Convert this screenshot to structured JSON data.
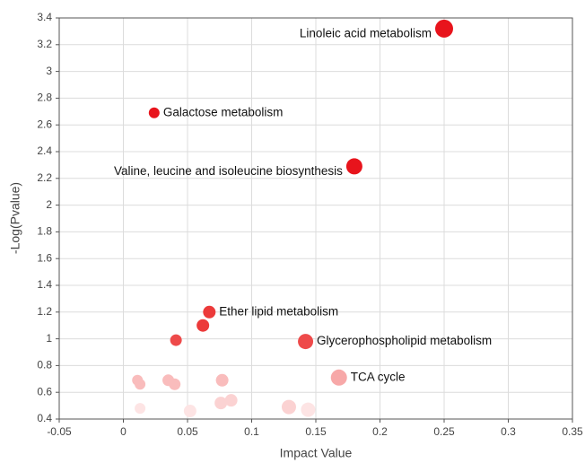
{
  "chart_data": {
    "type": "scatter",
    "x_label": "Impact Value",
    "y_label": "-Log(Pvalue)",
    "xlim": [
      -0.05,
      0.35
    ],
    "ylim": [
      0.4,
      3.4
    ],
    "xticks": [
      -0.05,
      0,
      0.05,
      0.1,
      0.15,
      0.2,
      0.25,
      0.3,
      0.35
    ],
    "yticks": [
      0.4,
      0.6,
      0.8,
      1,
      1.2,
      1.4,
      1.6,
      1.8,
      2,
      2.2,
      2.4,
      2.6,
      2.8,
      3,
      3.2,
      3.4
    ],
    "grid": true,
    "x": [
      0.25,
      0.024,
      0.18,
      0.067,
      0.062,
      0.041,
      0.142,
      0.168,
      0.011,
      0.013,
      0.035,
      0.04,
      0.077,
      0.076,
      0.084,
      0.129,
      0.144,
      0.013,
      0.052
    ],
    "values": [
      3.32,
      2.69,
      2.29,
      1.2,
      1.1,
      0.99,
      0.98,
      0.71,
      0.69,
      0.66,
      0.69,
      0.66,
      0.69,
      0.52,
      0.54,
      0.49,
      0.47,
      0.48,
      0.46
    ],
    "sizes": [
      10,
      6,
      9,
      7,
      7,
      6.5,
      8.5,
      9,
      6,
      6,
      6.5,
      6.5,
      7,
      7,
      7,
      8,
      8,
      6,
      7
    ],
    "colors": [
      "#e8141c",
      "#e8141c",
      "#e8141c",
      "#ec3a3a",
      "#ec3a3a",
      "#ee4a4a",
      "#ee4a4a",
      "#f7a8a8",
      "#f9bcbc",
      "#f9bcbc",
      "#f9bcbc",
      "#f9bcbc",
      "#f9bcbc",
      "#fbd2d2",
      "#fbd2d2",
      "#fbd2d2",
      "#fde4e4",
      "#fde4e4",
      "#fde4e4"
    ],
    "labels": [
      "Linoleic acid metabolism",
      "Galactose metabolism",
      "Valine, leucine and isoleucine biosynthesis",
      "Ether lipid metabolism",
      null,
      null,
      "Glycerophospholipid metabolism",
      "TCA cycle",
      null,
      null,
      null,
      null,
      null,
      null,
      null,
      null,
      null,
      null,
      null
    ]
  }
}
